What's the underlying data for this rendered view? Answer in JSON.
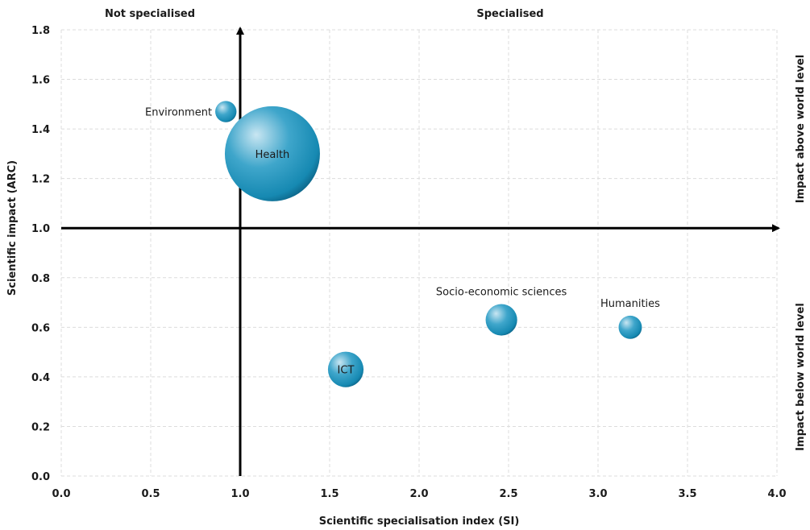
{
  "chart_data": {
    "type": "bubble",
    "xlabel": "Scientific specialisation index (SI)",
    "ylabel": "Scientific impact (ARC)",
    "xlim": [
      0,
      4
    ],
    "ylim": [
      0,
      1.8
    ],
    "xticks": [
      "0.0",
      "0.5",
      "1.0",
      "1.5",
      "2.0",
      "2.5",
      "3.0",
      "3.5",
      "4.0"
    ],
    "yticks": [
      "0.0",
      "0.2",
      "0.4",
      "0.6",
      "0.8",
      "1.0",
      "1.2",
      "1.4",
      "1.6",
      "1.8"
    ],
    "reference_lines": {
      "x": 1.0,
      "y": 1.0
    },
    "quadrant_labels": {
      "top_left": "Not specialised",
      "top_right": "Specialised",
      "right_upper": "Impact above world level",
      "right_lower": "Impact below world level"
    },
    "grid": true,
    "bubble_color": "#1f90b8",
    "points": [
      {
        "name": "Environment",
        "x": 0.92,
        "y": 1.47,
        "size": 5,
        "label_side": "left"
      },
      {
        "name": "Health",
        "x": 1.18,
        "y": 1.3,
        "size": 100,
        "label_side": "center"
      },
      {
        "name": "ICT",
        "x": 1.59,
        "y": 0.43,
        "size": 14,
        "label_side": "center"
      },
      {
        "name": "Socio-economic sciences",
        "x": 2.46,
        "y": 0.63,
        "size": 11,
        "label_side": "above"
      },
      {
        "name": "Humanities",
        "x": 3.18,
        "y": 0.6,
        "size": 6,
        "label_side": "above"
      }
    ]
  }
}
